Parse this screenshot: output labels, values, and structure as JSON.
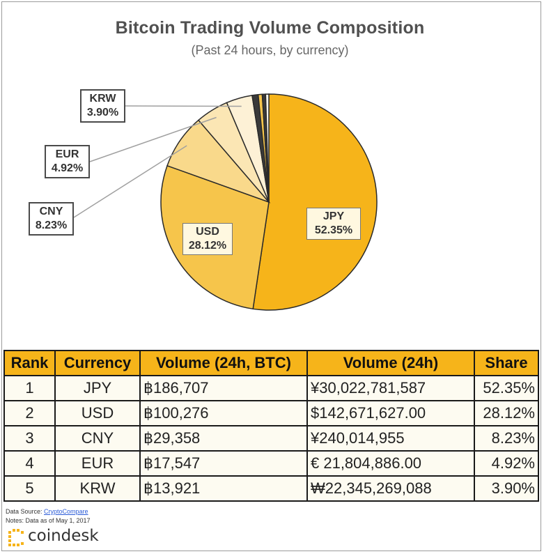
{
  "chart_data": {
    "type": "pie",
    "title": "Bitcoin Trading Volume Composition",
    "subtitle": "(Past 24 hours, by currency)",
    "slices": [
      {
        "label": "JPY",
        "share": 52.35,
        "display": "52.35%",
        "color": "#f6b41a"
      },
      {
        "label": "USD",
        "share": 28.12,
        "display": "28.12%",
        "color": "#f6c54b"
      },
      {
        "label": "CNY",
        "share": 8.23,
        "display": "8.23%",
        "color": "#f9d98b"
      },
      {
        "label": "EUR",
        "share": 4.92,
        "display": "4.92%",
        "color": "#fbe6b4"
      },
      {
        "label": "KRW",
        "share": 3.9,
        "display": "3.90%",
        "color": "#fdf1d6"
      },
      {
        "label": "",
        "share": 0.9,
        "display": "",
        "color": "#3a3a3a"
      },
      {
        "label": "",
        "share": 0.6,
        "display": "",
        "color": "#f6c54b"
      },
      {
        "label": "",
        "share": 0.5,
        "display": "",
        "color": "#3a3a3a"
      },
      {
        "label": "",
        "share": 0.48,
        "display": "",
        "color": "#fdf8ec"
      }
    ]
  },
  "table": {
    "headers": [
      "Rank",
      "Currency",
      "Volume (24h, BTC)",
      "Volume (24h)",
      "Share"
    ],
    "rows": [
      {
        "rank": "1",
        "currency": "JPY",
        "btc": "฿186,707",
        "volume": "¥30,022,781,587",
        "share": "52.35%"
      },
      {
        "rank": "2",
        "currency": "USD",
        "btc": "฿100,276",
        "volume": "$142,671,627.00",
        "share": "28.12%"
      },
      {
        "rank": "3",
        "currency": "CNY",
        "btc": "฿29,358",
        "volume": "¥240,014,955",
        "share": "8.23%"
      },
      {
        "rank": "4",
        "currency": "EUR",
        "btc": "฿17,547",
        "volume": "€ 21,804,886.00",
        "share": "4.92%"
      },
      {
        "rank": "5",
        "currency": "KRW",
        "btc": "฿13,921",
        "volume": "₩22,345,269,088",
        "share": "3.90%"
      }
    ]
  },
  "footer": {
    "source_prefix": "Data Source: ",
    "source_link": "CryptoCompare",
    "notes": "Notes: Data as of May 1, 2017",
    "brand": "coindesk",
    "brand_color": "#f6b41a"
  }
}
